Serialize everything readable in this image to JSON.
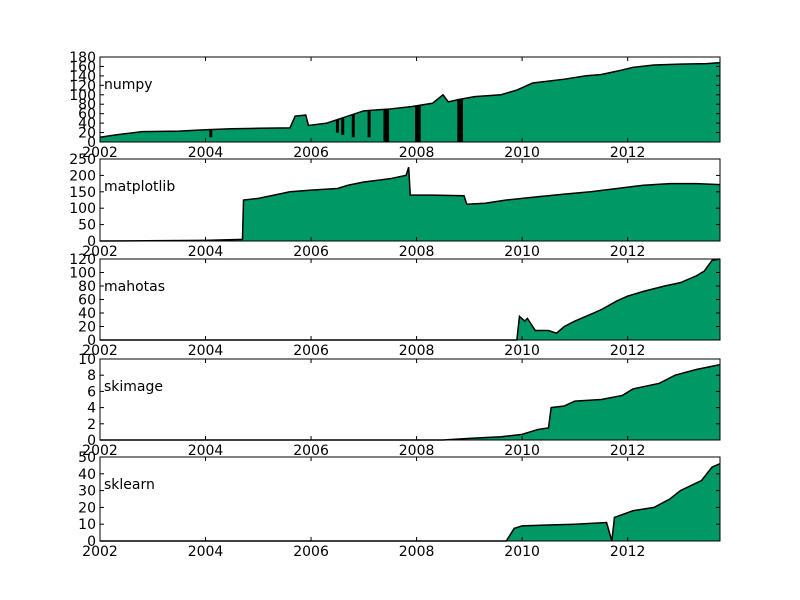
{
  "chart_data": [
    {
      "type": "area",
      "label": "numpy",
      "color": "#009966",
      "xlim": [
        2002,
        2013.75
      ],
      "ylim": [
        0,
        180
      ],
      "yticks": [
        0,
        20,
        40,
        60,
        80,
        100,
        120,
        140,
        160,
        180
      ],
      "xticks": [
        2002,
        2004,
        2006,
        2008,
        2010,
        2012
      ],
      "points": [
        [
          2002,
          10
        ],
        [
          2002.3,
          15
        ],
        [
          2002.8,
          22
        ],
        [
          2003.5,
          23
        ],
        [
          2004,
          26
        ],
        [
          2004.5,
          28
        ],
        [
          2005,
          29
        ],
        [
          2005.6,
          30
        ],
        [
          2005.7,
          55
        ],
        [
          2005.9,
          57
        ],
        [
          2005.95,
          35
        ],
        [
          2006.3,
          40
        ],
        [
          2006.7,
          55
        ],
        [
          2007.0,
          66
        ],
        [
          2007.5,
          70
        ],
        [
          2007.9,
          75
        ],
        [
          2008.3,
          82
        ],
        [
          2008.5,
          100
        ],
        [
          2008.6,
          85
        ],
        [
          2008.8,
          90
        ],
        [
          2009.1,
          96
        ],
        [
          2009.6,
          100
        ],
        [
          2009.9,
          110
        ],
        [
          2010.2,
          125
        ],
        [
          2010.8,
          133
        ],
        [
          2011.2,
          140
        ],
        [
          2011.5,
          143
        ],
        [
          2011.8,
          150
        ],
        [
          2012.1,
          158
        ],
        [
          2012.5,
          163
        ],
        [
          2013.0,
          165
        ],
        [
          2013.5,
          166
        ],
        [
          2013.75,
          168
        ]
      ],
      "dips": [
        [
          2004.1,
          10
        ],
        [
          2006.5,
          20
        ],
        [
          2006.6,
          15
        ],
        [
          2006.8,
          10
        ],
        [
          2007.1,
          10
        ],
        [
          2007.4,
          0
        ],
        [
          2007.45,
          0
        ],
        [
          2008.0,
          0
        ],
        [
          2008.05,
          0
        ],
        [
          2008.8,
          0
        ],
        [
          2008.85,
          0
        ]
      ]
    },
    {
      "type": "area",
      "label": "matplotlib",
      "color": "#009966",
      "xlim": [
        2002,
        2013.75
      ],
      "ylim": [
        0,
        250
      ],
      "yticks": [
        0,
        50,
        100,
        150,
        200,
        250
      ],
      "xticks": [
        2002,
        2004,
        2006,
        2008,
        2010,
        2012
      ],
      "points": [
        [
          2002,
          0
        ],
        [
          2004,
          2
        ],
        [
          2004.7,
          5
        ],
        [
          2004.72,
          125
        ],
        [
          2005.0,
          130
        ],
        [
          2005.3,
          140
        ],
        [
          2005.6,
          150
        ],
        [
          2006.0,
          155
        ],
        [
          2006.5,
          160
        ],
        [
          2006.7,
          170
        ],
        [
          2007.0,
          180
        ],
        [
          2007.5,
          190
        ],
        [
          2007.8,
          200
        ],
        [
          2007.85,
          225
        ],
        [
          2007.88,
          140
        ],
        [
          2008.3,
          140
        ],
        [
          2008.9,
          138
        ],
        [
          2008.95,
          112
        ],
        [
          2009.3,
          115
        ],
        [
          2009.7,
          125
        ],
        [
          2010.3,
          135
        ],
        [
          2010.8,
          143
        ],
        [
          2011.3,
          150
        ],
        [
          2011.8,
          160
        ],
        [
          2012.3,
          170
        ],
        [
          2012.8,
          175
        ],
        [
          2013.3,
          175
        ],
        [
          2013.75,
          172
        ]
      ],
      "dips": []
    },
    {
      "type": "area",
      "label": "mahotas",
      "color": "#009966",
      "xlim": [
        2002,
        2013.75
      ],
      "ylim": [
        0,
        120
      ],
      "yticks": [
        0,
        20,
        40,
        60,
        80,
        100,
        120
      ],
      "xticks": [
        2002,
        2004,
        2006,
        2008,
        2010,
        2012
      ],
      "points": [
        [
          2002,
          0
        ],
        [
          2009.9,
          0
        ],
        [
          2009.95,
          35
        ],
        [
          2010.05,
          28
        ],
        [
          2010.1,
          32
        ],
        [
          2010.25,
          14
        ],
        [
          2010.5,
          14
        ],
        [
          2010.65,
          10
        ],
        [
          2010.8,
          20
        ],
        [
          2011.0,
          28
        ],
        [
          2011.3,
          38
        ],
        [
          2011.5,
          45
        ],
        [
          2011.8,
          58
        ],
        [
          2012.0,
          65
        ],
        [
          2012.3,
          72
        ],
        [
          2012.7,
          80
        ],
        [
          2013.0,
          85
        ],
        [
          2013.3,
          95
        ],
        [
          2013.45,
          102
        ],
        [
          2013.6,
          118
        ],
        [
          2013.75,
          120
        ]
      ],
      "dips": []
    },
    {
      "type": "area",
      "label": "skimage",
      "color": "#009966",
      "xlim": [
        2002,
        2013.75
      ],
      "ylim": [
        0,
        10
      ],
      "yticks": [
        0,
        2,
        4,
        6,
        8,
        10
      ],
      "xticks": [
        2002,
        2004,
        2006,
        2008,
        2010,
        2012
      ],
      "points": [
        [
          2002,
          0
        ],
        [
          2008.5,
          0
        ],
        [
          2009.0,
          0.2
        ],
        [
          2009.6,
          0.4
        ],
        [
          2010.0,
          0.7
        ],
        [
          2010.3,
          1.3
        ],
        [
          2010.5,
          1.5
        ],
        [
          2010.55,
          4.0
        ],
        [
          2010.8,
          4.2
        ],
        [
          2011.0,
          4.8
        ],
        [
          2011.5,
          5.0
        ],
        [
          2011.9,
          5.5
        ],
        [
          2012.1,
          6.3
        ],
        [
          2012.6,
          7.0
        ],
        [
          2012.9,
          8.0
        ],
        [
          2013.3,
          8.7
        ],
        [
          2013.75,
          9.3
        ]
      ],
      "dips": []
    },
    {
      "type": "area",
      "label": "sklearn",
      "color": "#009966",
      "xlim": [
        2002,
        2013.75
      ],
      "ylim": [
        0,
        50
      ],
      "yticks": [
        0,
        10,
        20,
        30,
        40,
        50
      ],
      "xticks": [
        2002,
        2004,
        2006,
        2008,
        2010,
        2012
      ],
      "points": [
        [
          2002,
          0
        ],
        [
          2009.7,
          0
        ],
        [
          2009.85,
          7.5
        ],
        [
          2010.0,
          9
        ],
        [
          2010.5,
          9.5
        ],
        [
          2011.0,
          10
        ],
        [
          2011.6,
          11
        ],
        [
          2011.7,
          0
        ],
        [
          2011.75,
          14
        ],
        [
          2012.1,
          18
        ],
        [
          2012.5,
          20
        ],
        [
          2012.8,
          25
        ],
        [
          2013.0,
          30
        ],
        [
          2013.2,
          33
        ],
        [
          2013.4,
          36
        ],
        [
          2013.6,
          44
        ],
        [
          2013.75,
          46
        ]
      ],
      "dips": []
    }
  ]
}
